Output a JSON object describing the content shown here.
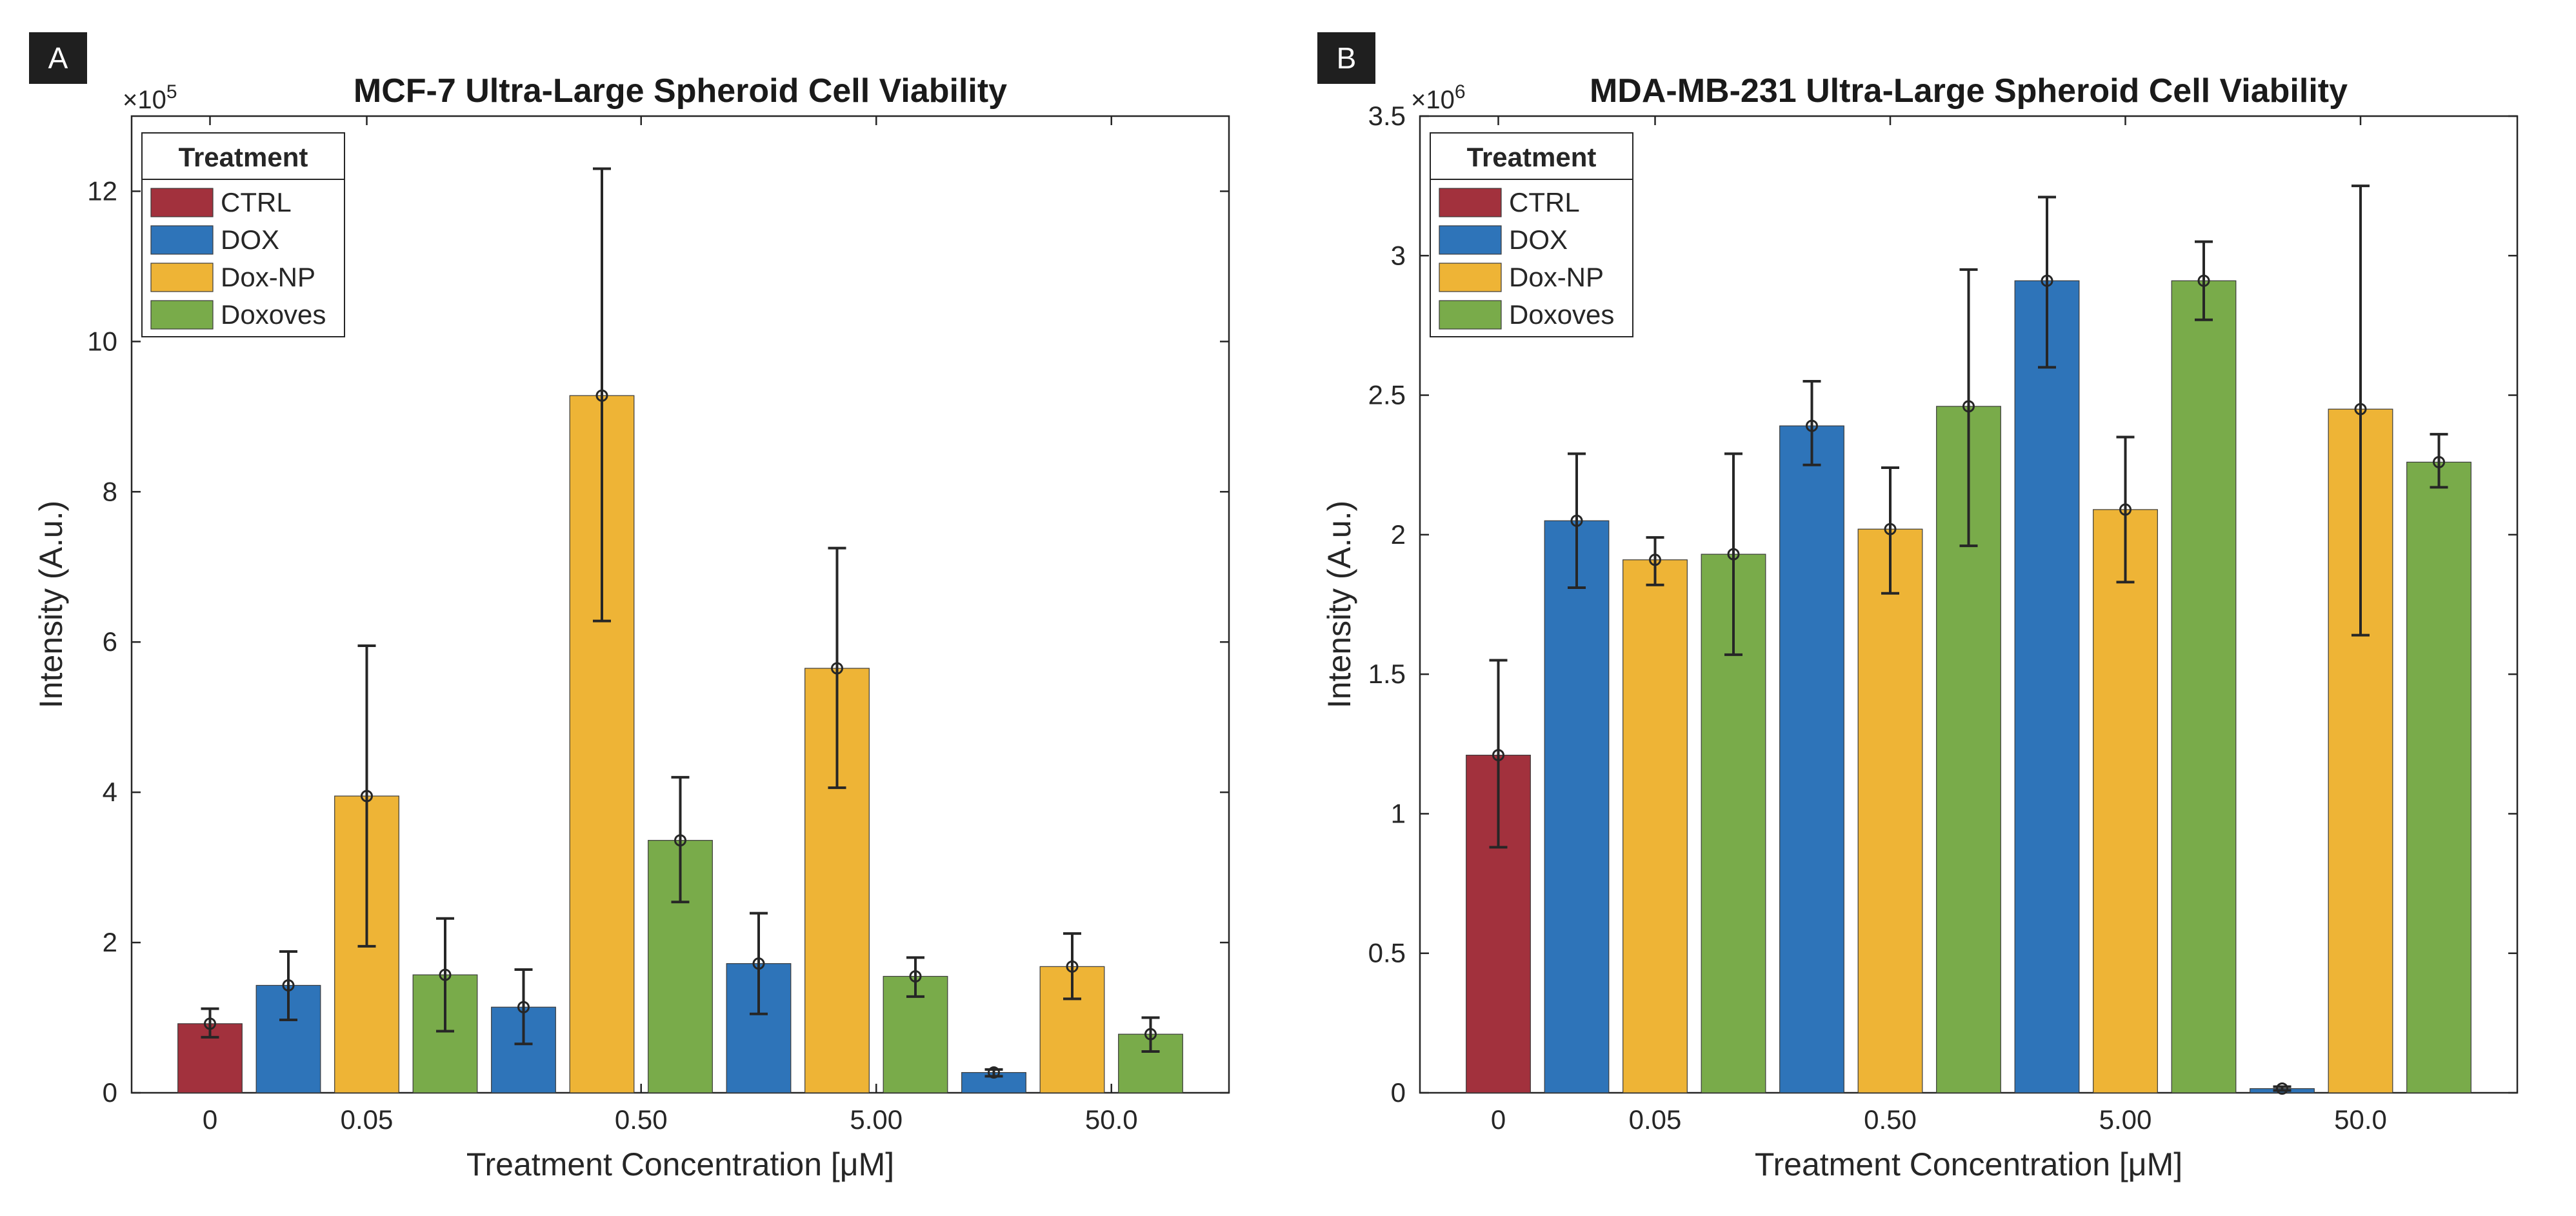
{
  "figure": {
    "colors": {
      "CTRL": "#a2313d",
      "DOX": "#2e74b9",
      "Dox-NP": "#eeb436",
      "Doxoves": "#79ab4a"
    }
  },
  "chart_data": [
    {
      "type": "bar",
      "panel_label": "A",
      "title": "MCF-7 Ultra-Large Spheroid Cell Viability",
      "xlabel": "Treatment Concentration [μM]",
      "ylabel": "Intensity (A.u.)",
      "exponent_label": "×10",
      "exponent": "5",
      "scale": 100000,
      "ylim": [
        0,
        13
      ],
      "yticks": [
        0,
        2,
        4,
        6,
        8,
        10,
        12
      ],
      "ytick_labels": [
        "0",
        "2",
        "4",
        "6",
        "8",
        "10",
        "12"
      ],
      "xticks": [
        {
          "label": "0",
          "slot": 0
        },
        {
          "label": "0.05",
          "slot": 2
        },
        {
          "label": "0.50",
          "slot": 5.5
        },
        {
          "label": "5.00",
          "slot": 8.5
        },
        {
          "label": "50.0",
          "slot": 11.5
        }
      ],
      "n_slots": 13,
      "grid": false,
      "legend": {
        "title": "Treatment",
        "entries": [
          "CTRL",
          "DOX",
          "Dox-NP",
          "Doxoves"
        ],
        "location": "top-left"
      },
      "bars": [
        {
          "concentration": "0",
          "treatment": "CTRL",
          "value": 0.92,
          "err_low": 0.74,
          "err_high": 1.12
        },
        {
          "concentration": "0.05",
          "treatment": "DOX",
          "value": 1.43,
          "err_low": 0.97,
          "err_high": 1.88
        },
        {
          "concentration": "0.05",
          "treatment": "Dox-NP",
          "value": 3.95,
          "err_low": 1.95,
          "err_high": 5.95
        },
        {
          "concentration": "0.05",
          "treatment": "Doxoves",
          "value": 1.57,
          "err_low": 0.82,
          "err_high": 2.32
        },
        {
          "concentration": "0.50",
          "treatment": "DOX",
          "value": 1.14,
          "err_low": 0.65,
          "err_high": 1.64
        },
        {
          "concentration": "0.50",
          "treatment": "Dox-NP",
          "value": 9.28,
          "err_low": 6.28,
          "err_high": 12.3
        },
        {
          "concentration": "0.50",
          "treatment": "Doxoves",
          "value": 3.36,
          "err_low": 2.54,
          "err_high": 4.2
        },
        {
          "concentration": "5.00",
          "treatment": "DOX",
          "value": 1.72,
          "err_low": 1.05,
          "err_high": 2.39
        },
        {
          "concentration": "5.00",
          "treatment": "Dox-NP",
          "value": 5.65,
          "err_low": 4.06,
          "err_high": 7.25
        },
        {
          "concentration": "5.00",
          "treatment": "Doxoves",
          "value": 1.55,
          "err_low": 1.28,
          "err_high": 1.8
        },
        {
          "concentration": "50.0",
          "treatment": "DOX",
          "value": 0.27,
          "err_low": 0.22,
          "err_high": 0.31
        },
        {
          "concentration": "50.0",
          "treatment": "Dox-NP",
          "value": 1.68,
          "err_low": 1.25,
          "err_high": 2.12
        },
        {
          "concentration": "50.0",
          "treatment": "Doxoves",
          "value": 0.78,
          "err_low": 0.55,
          "err_high": 1.0
        }
      ]
    },
    {
      "type": "bar",
      "panel_label": "B",
      "title": "MDA-MB-231 Ultra-Large Spheroid Cell Viability",
      "xlabel": "Treatment Concentration [μM]",
      "ylabel": "Intensity (A.u.)",
      "exponent_label": "×10",
      "exponent": "6",
      "scale": 1000000,
      "ylim": [
        0,
        3.5
      ],
      "yticks": [
        0,
        0.5,
        1,
        1.5,
        2,
        2.5,
        3,
        3.5
      ],
      "ytick_labels": [
        "0",
        "0.5",
        "1",
        "1.5",
        "2",
        "2.5",
        "3",
        "3.5"
      ],
      "xticks": [
        {
          "label": "0",
          "slot": 0
        },
        {
          "label": "0.05",
          "slot": 2
        },
        {
          "label": "0.50",
          "slot": 5
        },
        {
          "label": "5.00",
          "slot": 8
        },
        {
          "label": "50.0",
          "slot": 11
        }
      ],
      "n_slots": 13,
      "grid": false,
      "legend": {
        "title": "Treatment",
        "entries": [
          "CTRL",
          "DOX",
          "Dox-NP",
          "Doxoves"
        ],
        "location": "top-left"
      },
      "bars": [
        {
          "concentration": "0",
          "treatment": "CTRL",
          "value": 1.21,
          "err_low": 0.88,
          "err_high": 1.55
        },
        {
          "concentration": "0.05",
          "treatment": "DOX",
          "value": 2.05,
          "err_low": 1.81,
          "err_high": 2.29
        },
        {
          "concentration": "0.05",
          "treatment": "Dox-NP",
          "value": 1.91,
          "err_low": 1.82,
          "err_high": 1.99
        },
        {
          "concentration": "0.05",
          "treatment": "Doxoves",
          "value": 1.93,
          "err_low": 1.57,
          "err_high": 2.29
        },
        {
          "concentration": "0.50",
          "treatment": "DOX",
          "value": 2.39,
          "err_low": 2.25,
          "err_high": 2.55
        },
        {
          "concentration": "0.50",
          "treatment": "Dox-NP",
          "value": 2.02,
          "err_low": 1.79,
          "err_high": 2.24
        },
        {
          "concentration": "0.50",
          "treatment": "Doxoves",
          "value": 2.46,
          "err_low": 1.96,
          "err_high": 2.95
        },
        {
          "concentration": "5.00",
          "treatment": "DOX",
          "value": 2.91,
          "err_low": 2.6,
          "err_high": 3.21
        },
        {
          "concentration": "5.00",
          "treatment": "Dox-NP",
          "value": 2.09,
          "err_low": 1.83,
          "err_high": 2.35
        },
        {
          "concentration": "5.00",
          "treatment": "Doxoves",
          "value": 2.91,
          "err_low": 2.77,
          "err_high": 3.05
        },
        {
          "concentration": "50.0",
          "treatment": "DOX",
          "value": 0.015,
          "err_low": 0.008,
          "err_high": 0.022
        },
        {
          "concentration": "50.0",
          "treatment": "Dox-NP",
          "value": 2.45,
          "err_low": 1.64,
          "err_high": 3.25
        },
        {
          "concentration": "50.0",
          "treatment": "Doxoves",
          "value": 2.26,
          "err_low": 2.17,
          "err_high": 2.36
        }
      ]
    }
  ]
}
